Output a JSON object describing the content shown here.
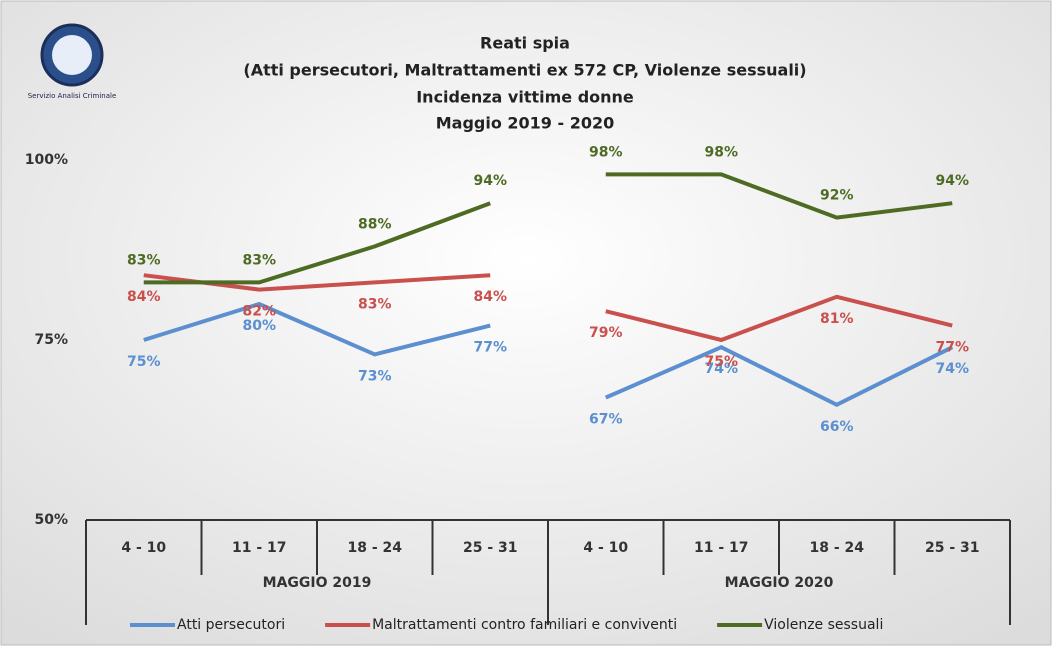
{
  "logo": {
    "text": "Servizio Analisi Criminale"
  },
  "chart_data": {
    "type": "line",
    "title": [
      "Reati spia",
      "(Atti persecutori, Maltrattamenti ex 572 CP, Violenze sessuali)",
      "Incidenza vittime donne",
      "Maggio 2019 - 2020"
    ],
    "categories": [
      "4 - 10",
      "11 - 17",
      "18 - 24",
      "25 - 31",
      "4 - 10",
      "11 - 17",
      "18 - 24",
      "25 - 31"
    ],
    "groups": [
      {
        "name": "MAGGIO 2019",
        "size": 4
      },
      {
        "name": "MAGGIO 2020",
        "size": 4
      }
    ],
    "ylim": [
      50,
      100
    ],
    "yticks": [
      {
        "value": 50,
        "label": "50%"
      },
      {
        "value": 75,
        "label": "75%"
      },
      {
        "value": 100,
        "label": "100%"
      }
    ],
    "series": [
      {
        "name": "Atti persecutori",
        "color": "#5b8fd0",
        "values": [
          75,
          80,
          73,
          77,
          67,
          74,
          66,
          74
        ],
        "value_labels": [
          "75%",
          "80%",
          "73%",
          "77%",
          "67%",
          "74%",
          "66%",
          "74%"
        ]
      },
      {
        "name": "Maltrattamenti contro familiari e conviventi",
        "color": "#c9504c",
        "values": [
          84,
          82,
          83,
          84,
          79,
          75,
          81,
          77
        ],
        "value_labels": [
          "84%",
          "82%",
          "83%",
          "84%",
          "79%",
          "75%",
          "81%",
          "77%"
        ]
      },
      {
        "name": "Violenze sessuali",
        "color": "#4e6b24",
        "values": [
          83,
          83,
          88,
          94,
          98,
          98,
          92,
          94
        ],
        "value_labels": [
          "83%",
          "83%",
          "88%",
          "94%",
          "98%",
          "98%",
          "92%",
          "94%"
        ]
      }
    ],
    "legend": "bottom"
  }
}
